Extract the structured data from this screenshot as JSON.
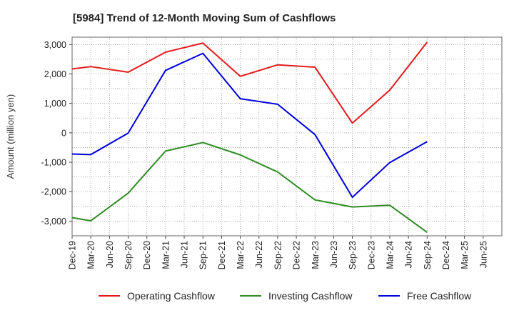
{
  "chart_data": {
    "type": "line",
    "title": "[5984]  Trend of 12-Month Moving Sum of Cashflows",
    "xlabel": "",
    "ylabel": "Amount (million yen)",
    "ylim": [
      -3500,
      3250
    ],
    "yticks": [
      3000,
      2000,
      1000,
      0,
      -1000,
      -2000,
      -3000
    ],
    "ytick_labels": [
      "3,000",
      "2,000",
      "1,000",
      "0",
      "-1,000",
      "-2,000",
      "-3,000"
    ],
    "grid": true,
    "legend_position": "bottom",
    "categories": [
      "Dec-19",
      "Mar-20",
      "Jun-20",
      "Sep-20",
      "Dec-20",
      "Mar-21",
      "Jun-21",
      "Sep-21",
      "Dec-21",
      "Mar-22",
      "Jun-22",
      "Sep-22",
      "Dec-22",
      "Mar-23",
      "Jun-23",
      "Sep-23",
      "Dec-23",
      "Mar-24",
      "Jun-24",
      "Sep-24",
      "Dec-24",
      "Mar-25"
    ],
    "tick_labels": [
      "Dec-19",
      "Mar-20",
      "Jun-20",
      "Sep-20",
      "Dec-20",
      "Mar-21",
      "Jun-21",
      "Sep-21",
      "Dec-21",
      "Mar-22",
      "Jun-22",
      "Sep-22",
      "Dec-22",
      "Mar-23",
      "Jun-23",
      "Sep-23",
      "Dec-23",
      "Mar-24",
      "Jun-24",
      "Sep-24",
      "Dec-24",
      "Mar-25",
      "Jun-25"
    ],
    "series": [
      {
        "name": "Operating Cashflow",
        "color": "#e41a1c",
        "points": [
          {
            "x": "Dec-19",
            "y": 2170
          },
          {
            "x": "Mar-20",
            "y": 2250
          },
          {
            "x": "Sep-20",
            "y": 2060
          },
          {
            "x": "Mar-21",
            "y": 2740
          },
          {
            "x": "Sep-21",
            "y": 3050
          },
          {
            "x": "Mar-22",
            "y": 1920
          },
          {
            "x": "Sep-22",
            "y": 2310
          },
          {
            "x": "Mar-23",
            "y": 2230
          },
          {
            "x": "Sep-23",
            "y": 330
          },
          {
            "x": "Mar-24",
            "y": 1450
          },
          {
            "x": "Sep-24",
            "y": 3080
          }
        ]
      },
      {
        "name": "Investing Cashflow",
        "color": "#2e8b22",
        "points": [
          {
            "x": "Dec-19",
            "y": -2880
          },
          {
            "x": "Mar-20",
            "y": -2990
          },
          {
            "x": "Sep-20",
            "y": -2050
          },
          {
            "x": "Mar-21",
            "y": -620
          },
          {
            "x": "Sep-21",
            "y": -330
          },
          {
            "x": "Mar-22",
            "y": -750
          },
          {
            "x": "Sep-22",
            "y": -1330
          },
          {
            "x": "Mar-23",
            "y": -2280
          },
          {
            "x": "Sep-23",
            "y": -2520
          },
          {
            "x": "Mar-24",
            "y": -2460
          },
          {
            "x": "Sep-24",
            "y": -3380
          }
        ]
      },
      {
        "name": "Free Cashflow",
        "color": "#0000dd",
        "points": [
          {
            "x": "Dec-19",
            "y": -720
          },
          {
            "x": "Mar-20",
            "y": -740
          },
          {
            "x": "Sep-20",
            "y": -10
          },
          {
            "x": "Mar-21",
            "y": 2120
          },
          {
            "x": "Sep-21",
            "y": 2700
          },
          {
            "x": "Mar-22",
            "y": 1160
          },
          {
            "x": "Sep-22",
            "y": 970
          },
          {
            "x": "Mar-23",
            "y": -60
          },
          {
            "x": "Sep-23",
            "y": -2190
          },
          {
            "x": "Mar-24",
            "y": -1010
          },
          {
            "x": "Sep-24",
            "y": -300
          }
        ]
      }
    ]
  }
}
